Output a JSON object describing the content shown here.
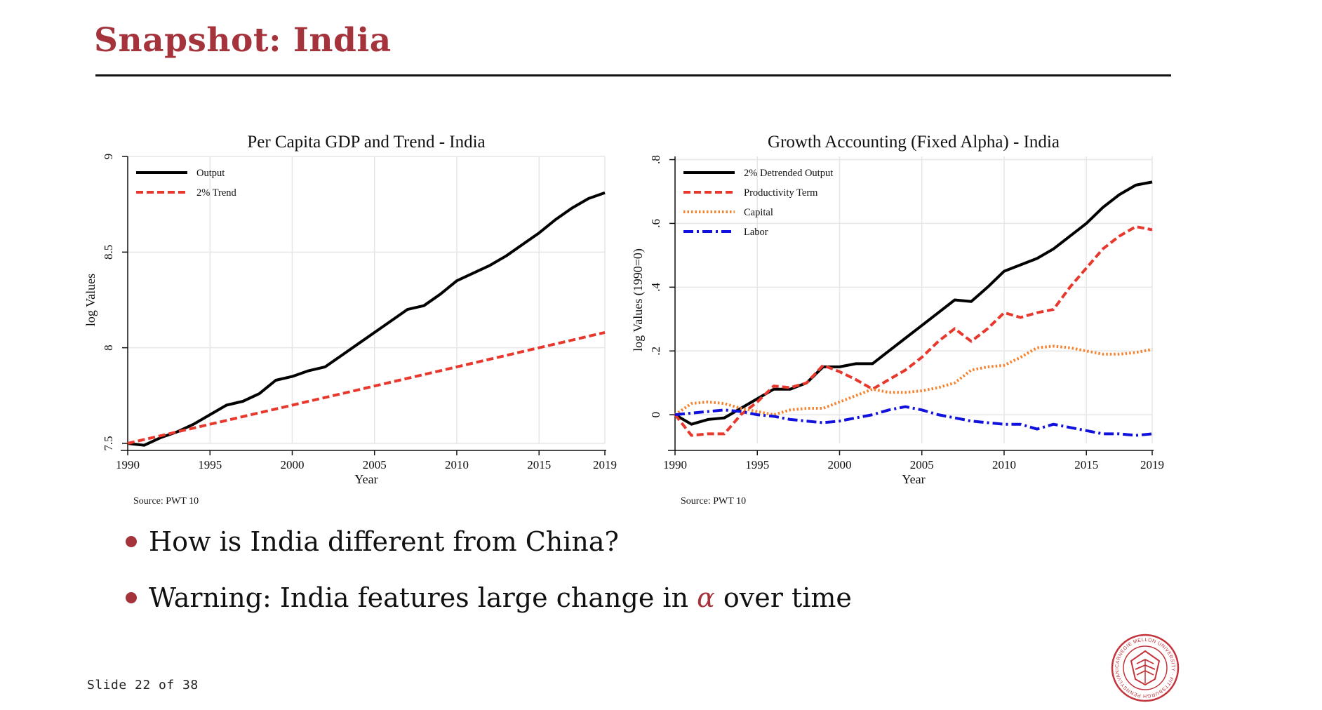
{
  "slide": {
    "title": "Snapshot:  India",
    "bullets": [
      {
        "before": "How is India different from China?",
        "symbol": "",
        "after": ""
      },
      {
        "before": "Warning: India features large change in ",
        "symbol": "α",
        "after": " over time"
      }
    ],
    "number_label": "Slide 22 of 38",
    "logo_text": "CARNEGIE MELLON UNIVERSITY · PITTSBURGH PENNSYLVANIA 1900",
    "accent_color": "#a4333b"
  },
  "chart_data": [
    {
      "type": "line",
      "title": "Per Capita GDP and Trend - India",
      "xlabel": "Year",
      "ylabel": "log Values",
      "note": "Source: PWT 10",
      "xlim": [
        1990,
        2019
      ],
      "ylim": [
        7.5,
        9
      ],
      "xticks": [
        "1990",
        "1995",
        "2000",
        "2005",
        "2010",
        "2015",
        "2019"
      ],
      "yticks": [
        "7.5",
        "8",
        "8.5",
        "9"
      ],
      "grid": true,
      "legend": "top-left",
      "x": [
        1990,
        1991,
        1992,
        1993,
        1994,
        1995,
        1996,
        1997,
        1998,
        1999,
        2000,
        2001,
        2002,
        2003,
        2004,
        2005,
        2006,
        2007,
        2008,
        2009,
        2010,
        2011,
        2012,
        2013,
        2014,
        2015,
        2016,
        2017,
        2018,
        2019
      ],
      "series": [
        {
          "name": "Output",
          "color": "#000000",
          "dash": "solid",
          "values": [
            7.5,
            7.49,
            7.53,
            7.56,
            7.6,
            7.65,
            7.7,
            7.72,
            7.76,
            7.83,
            7.85,
            7.88,
            7.9,
            7.96,
            8.02,
            8.08,
            8.14,
            8.2,
            8.22,
            8.28,
            8.35,
            8.39,
            8.43,
            8.48,
            8.54,
            8.6,
            8.67,
            8.73,
            8.78,
            8.81
          ]
        },
        {
          "name": "2% Trend",
          "color": "#e8372c",
          "dash": "dashed",
          "values": [
            7.5,
            7.52,
            7.54,
            7.56,
            7.58,
            7.6,
            7.62,
            7.64,
            7.66,
            7.68,
            7.7,
            7.72,
            7.74,
            7.76,
            7.78,
            7.8,
            7.82,
            7.84,
            7.86,
            7.88,
            7.9,
            7.92,
            7.94,
            7.96,
            7.98,
            8.0,
            8.02,
            8.04,
            8.06,
            8.08
          ]
        }
      ]
    },
    {
      "type": "line",
      "title": "Growth Accounting (Fixed Alpha) - India",
      "xlabel": "Year",
      "ylabel": "log Values (1990=0)",
      "note": "Source: PWT 10",
      "xlim": [
        1990,
        2019
      ],
      "ylim": [
        -0.09,
        0.81
      ],
      "xticks": [
        "1990",
        "1995",
        "2000",
        "2005",
        "2010",
        "2015",
        "2019"
      ],
      "yticks": [
        "0",
        ".2",
        ".4",
        ".6",
        ".8"
      ],
      "grid": true,
      "legend": "top-left",
      "x": [
        1990,
        1991,
        1992,
        1993,
        1994,
        1995,
        1996,
        1997,
        1998,
        1999,
        2000,
        2001,
        2002,
        2003,
        2004,
        2005,
        2006,
        2007,
        2008,
        2009,
        2010,
        2011,
        2012,
        2013,
        2014,
        2015,
        2016,
        2017,
        2018,
        2019
      ],
      "series": [
        {
          "name": "2% Detrended Output",
          "color": "#000000",
          "dash": "solid",
          "values": [
            0.0,
            -0.03,
            -0.015,
            -0.01,
            0.02,
            0.05,
            0.08,
            0.08,
            0.1,
            0.15,
            0.15,
            0.16,
            0.16,
            0.2,
            0.24,
            0.28,
            0.32,
            0.36,
            0.355,
            0.4,
            0.45,
            0.47,
            0.49,
            0.52,
            0.56,
            0.6,
            0.65,
            0.69,
            0.72,
            0.73
          ]
        },
        {
          "name": "Productivity Term",
          "color": "#e8372c",
          "dash": "dashed",
          "values": [
            0.0,
            -0.065,
            -0.06,
            -0.06,
            0.0,
            0.04,
            0.09,
            0.085,
            0.1,
            0.155,
            0.135,
            0.11,
            0.08,
            0.11,
            0.14,
            0.18,
            0.23,
            0.27,
            0.23,
            0.27,
            0.32,
            0.305,
            0.32,
            0.33,
            0.4,
            0.46,
            0.52,
            0.56,
            0.59,
            0.58
          ]
        },
        {
          "name": "Capital",
          "color": "#f5822e",
          "dash": "dotted",
          "values": [
            0.0,
            0.035,
            0.04,
            0.035,
            0.02,
            0.01,
            0.0,
            0.015,
            0.02,
            0.02,
            0.04,
            0.06,
            0.08,
            0.07,
            0.07,
            0.075,
            0.085,
            0.1,
            0.14,
            0.15,
            0.155,
            0.18,
            0.21,
            0.215,
            0.21,
            0.2,
            0.19,
            0.19,
            0.195,
            0.205
          ]
        },
        {
          "name": "Labor",
          "color": "#1111dd",
          "dash": "dashdot",
          "values": [
            0.0,
            0.005,
            0.01,
            0.015,
            0.01,
            0.0,
            -0.005,
            -0.015,
            -0.02,
            -0.025,
            -0.02,
            -0.01,
            0.0,
            0.015,
            0.025,
            0.015,
            0.0,
            -0.01,
            -0.02,
            -0.025,
            -0.03,
            -0.03,
            -0.045,
            -0.03,
            -0.04,
            -0.05,
            -0.06,
            -0.06,
            -0.065,
            -0.06
          ]
        }
      ]
    }
  ]
}
